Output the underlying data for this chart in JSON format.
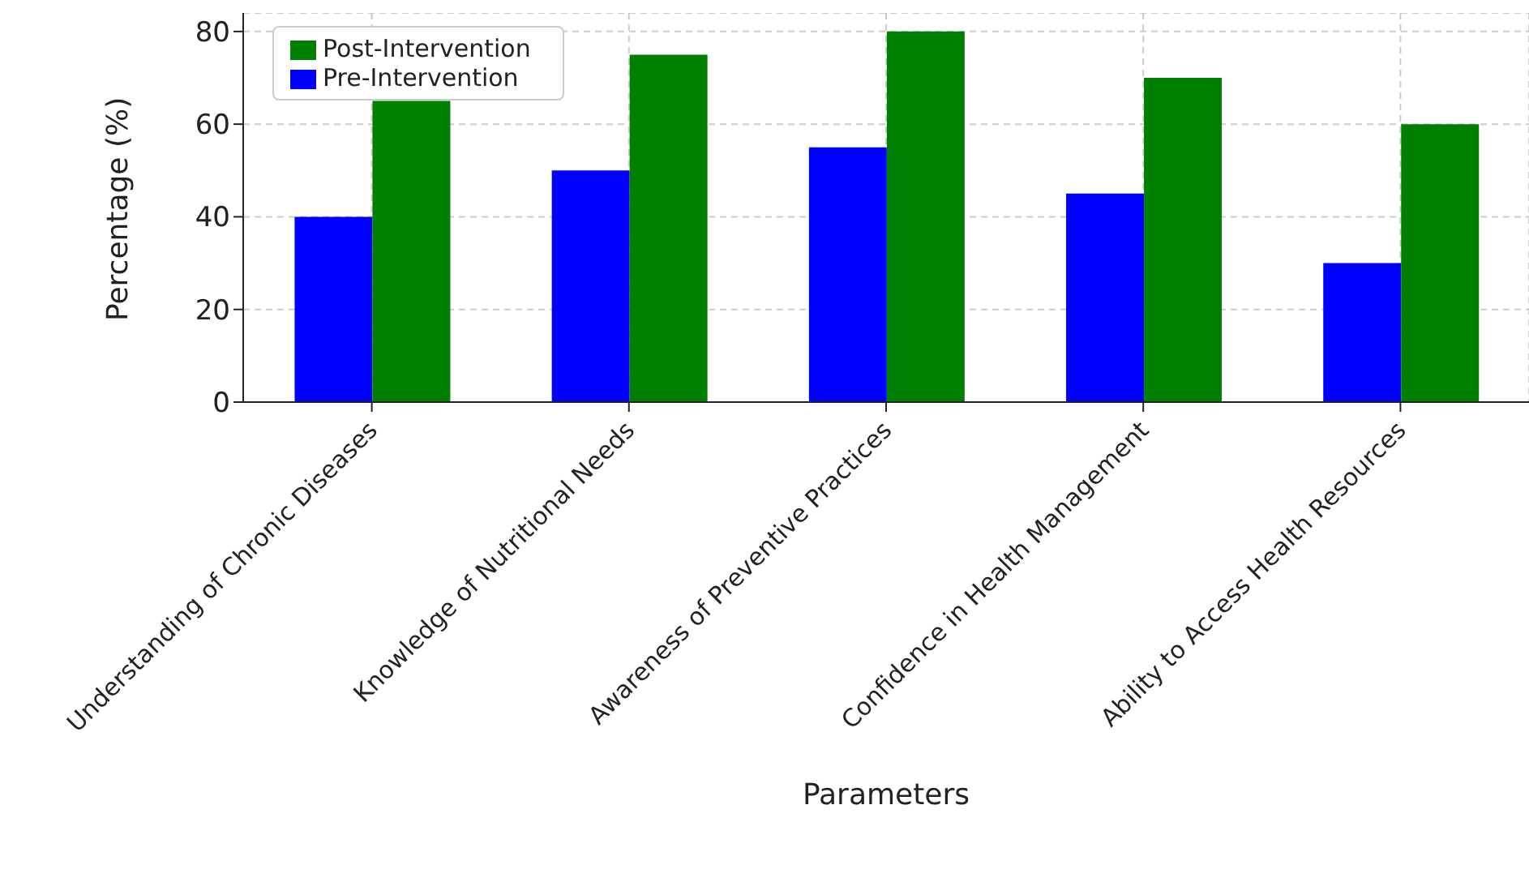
{
  "chart_data": {
    "type": "bar",
    "xlabel": "Parameters",
    "ylabel": "Percentage (%)",
    "categories": [
      "Understanding of Chronic Diseases",
      "Knowledge of Nutritional Needs",
      "Awareness of Preventive Practices",
      "Confidence in Health Management",
      "Ability to Access Health Resources"
    ],
    "series": [
      {
        "name": "Pre-Intervention",
        "color": "#0000ff",
        "values": [
          40,
          50,
          55,
          45,
          30
        ]
      },
      {
        "name": "Post-Intervention",
        "color": "#008000",
        "values": [
          65,
          75,
          80,
          70,
          60
        ]
      }
    ],
    "ylim": [
      0,
      84
    ],
    "yticks": [
      0,
      20,
      40,
      60,
      80
    ],
    "grid": true,
    "legend": "top left"
  }
}
